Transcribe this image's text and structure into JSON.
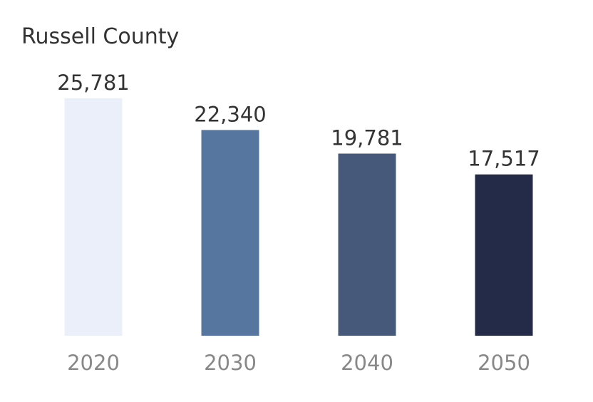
{
  "chart_data": {
    "type": "bar",
    "title": "Russell County",
    "categories": [
      "2020",
      "2030",
      "2040",
      "2050"
    ],
    "values": [
      25781,
      22340,
      19781,
      17517
    ],
    "value_labels": [
      "25,781",
      "22,340",
      "19,781",
      "17,517"
    ],
    "colors": [
      "#eaeff9",
      "#5676a0",
      "#47597b",
      "#232b49"
    ],
    "xlabel": "",
    "ylabel": "",
    "ylim": [
      0,
      25781
    ],
    "grid": false,
    "legend": "none"
  }
}
